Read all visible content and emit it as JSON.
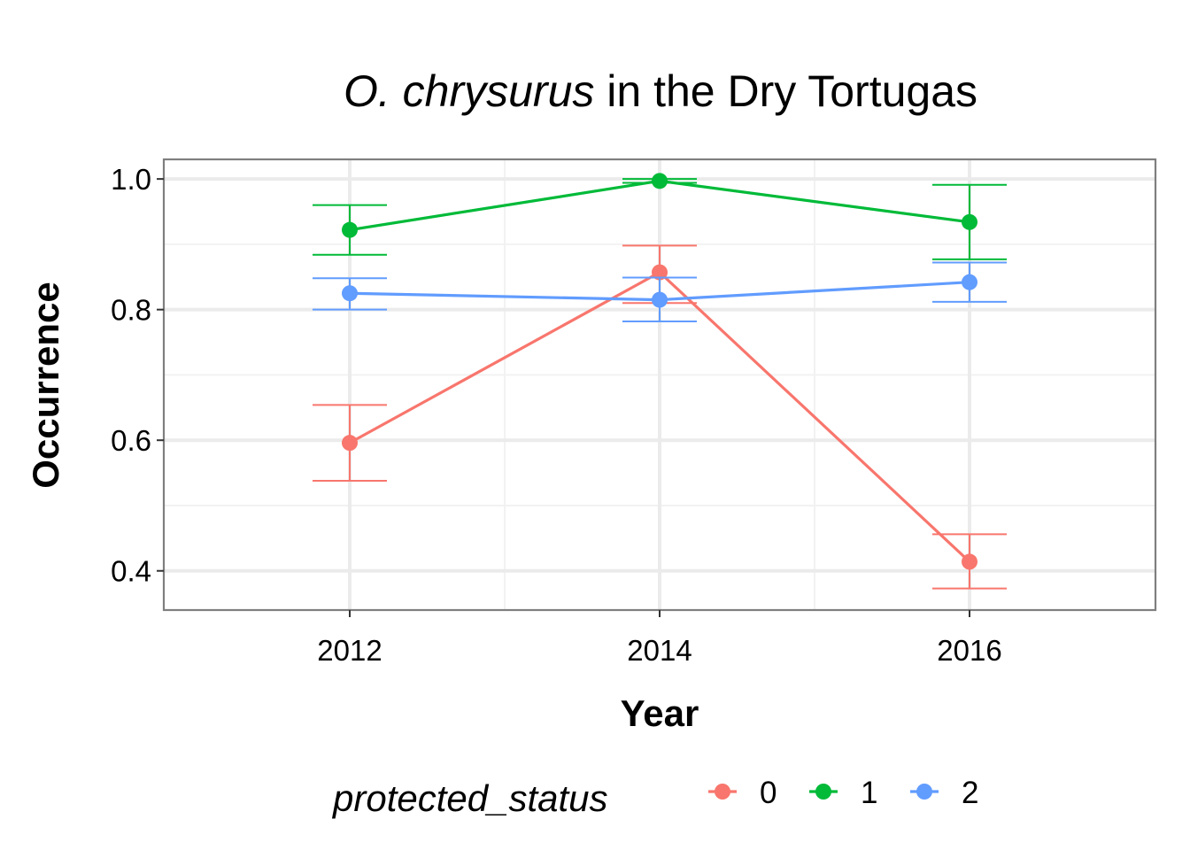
{
  "chart_data": {
    "type": "line",
    "title_italic": "O. chrysurus",
    "title_rest": " in the Dry Tortugas",
    "xlabel": "Year",
    "ylabel": "Occurrence",
    "x": [
      2012,
      2014,
      2016
    ],
    "x_tick_labels": [
      "2012",
      "2014",
      "2016"
    ],
    "xlim": [
      2010.8,
      2017.2
    ],
    "ylim": [
      0.34,
      1.03
    ],
    "y_ticks": [
      0.4,
      0.6,
      0.8,
      1.0
    ],
    "y_tick_labels": [
      "0.4",
      "0.6",
      "0.8",
      "1.0"
    ],
    "grid": true,
    "legend_title": "protected_status",
    "legend_position": "bottom",
    "series": [
      {
        "name": "0",
        "color": "#F8766D",
        "values": [
          0.596,
          0.857,
          0.414
        ],
        "lower": [
          0.538,
          0.81,
          0.373
        ],
        "upper": [
          0.654,
          0.898,
          0.456
        ]
      },
      {
        "name": "1",
        "color": "#00BA38",
        "values": [
          0.922,
          0.997,
          0.934
        ],
        "lower": [
          0.884,
          0.994,
          0.877
        ],
        "upper": [
          0.96,
          1.0,
          0.991
        ]
      },
      {
        "name": "2",
        "color": "#619CFF",
        "values": [
          0.825,
          0.815,
          0.842
        ],
        "lower": [
          0.8,
          0.782,
          0.812
        ],
        "upper": [
          0.848,
          0.849,
          0.872
        ]
      }
    ]
  }
}
